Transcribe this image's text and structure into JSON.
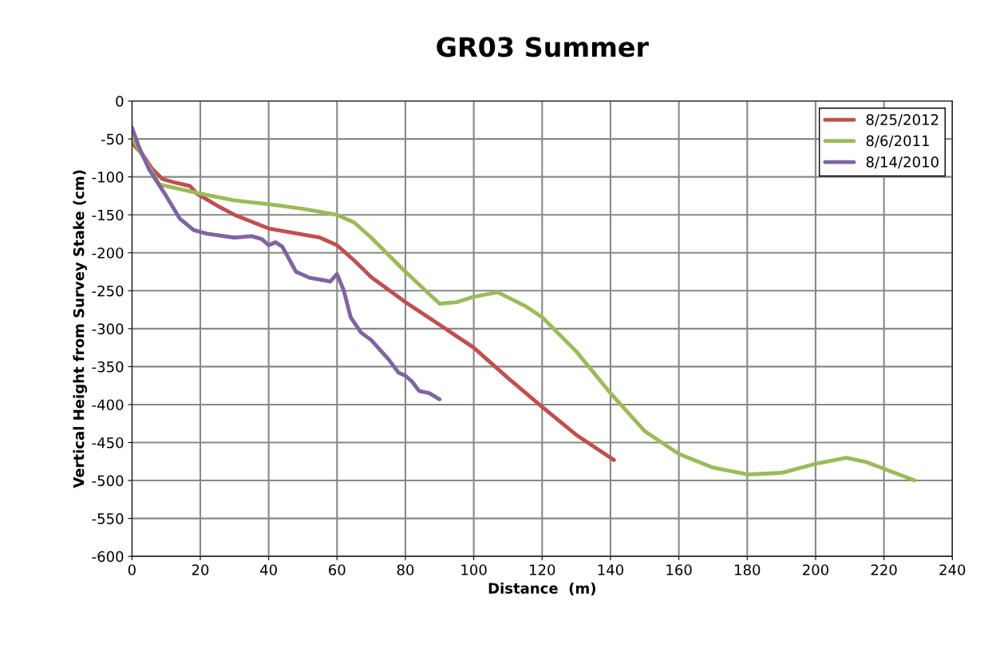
{
  "chart_data": {
    "type": "line",
    "title": "GR03 Summer",
    "xlabel": "Distance  (m)",
    "ylabel": "Vertical Height from Survey Stake (cm)",
    "xlim": [
      0,
      240
    ],
    "xticks": [
      0,
      20,
      40,
      60,
      80,
      100,
      120,
      140,
      160,
      180,
      200,
      220,
      240
    ],
    "ylim": [
      -600,
      0
    ],
    "yticks": [
      -600,
      -550,
      -500,
      -450,
      -400,
      -350,
      -300,
      -250,
      -200,
      -150,
      -100,
      -50,
      0
    ],
    "grid": true,
    "legend": "top right",
    "marker": "none",
    "line_style": "solid",
    "series": [
      {
        "name": "8/25/2012",
        "color": "#c0504d",
        "x": [
          0,
          3,
          6,
          9,
          13,
          17,
          19,
          25,
          30,
          40,
          50,
          55,
          60,
          65,
          70,
          80,
          90,
          100,
          110,
          120,
          130,
          141
        ],
        "values": [
          -55,
          -70,
          -90,
          -103,
          -108,
          -112,
          -122,
          -138,
          -150,
          -168,
          -176,
          -180,
          -190,
          -210,
          -232,
          -265,
          -295,
          -325,
          -365,
          -403,
          -440,
          -473
        ]
      },
      {
        "name": "8/6/2011",
        "color": "#9bbb59",
        "x": [
          0,
          8,
          20,
          30,
          40,
          50,
          60,
          65,
          70,
          80,
          90,
          95,
          100,
          107,
          115,
          120,
          130,
          140,
          150,
          160,
          170,
          180,
          190,
          200,
          209,
          215,
          229
        ],
        "values": [
          -48,
          -110,
          -122,
          -131,
          -136,
          -142,
          -150,
          -160,
          -180,
          -225,
          -267,
          -265,
          -258,
          -252,
          -270,
          -285,
          -330,
          -385,
          -435,
          -465,
          -483,
          -492,
          -490,
          -478,
          -470,
          -476,
          -500
        ]
      },
      {
        "name": "8/14/2010",
        "color": "#8064a2",
        "x": [
          0,
          2,
          5,
          10,
          14,
          18,
          22,
          30,
          35,
          38,
          40,
          42,
          44,
          48,
          52,
          56,
          58,
          60,
          62,
          64,
          67,
          70,
          75,
          78,
          80,
          82,
          84,
          87,
          90
        ],
        "values": [
          -35,
          -60,
          -90,
          -125,
          -155,
          -170,
          -175,
          -180,
          -178,
          -182,
          -190,
          -186,
          -192,
          -225,
          -233,
          -236,
          -238,
          -228,
          -250,
          -285,
          -305,
          -315,
          -340,
          -358,
          -362,
          -370,
          -382,
          -385,
          -393
        ]
      }
    ]
  }
}
